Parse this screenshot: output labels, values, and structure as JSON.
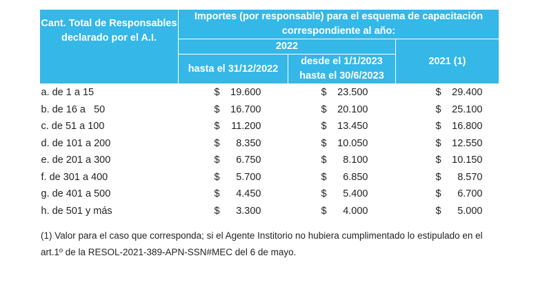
{
  "header": {
    "corner": "Cant. Total de Responsables declarado por el A.I.",
    "group": "Importes (por responsable) para el esquema de capacitación correspondiente al año:",
    "year_2022": "2022",
    "col_until": "hasta el 31/12/2022",
    "col_from": "desde el 1/1/2023 hasta el 30/6/2023",
    "col_2021": "2021 (1)"
  },
  "currency": "$",
  "rows": [
    {
      "range": "a. de 1 a 15",
      "v1": "19.600",
      "v2": "23.500",
      "v3": "29.400"
    },
    {
      "range": "b. de 16 a   50",
      "v1": "16.700",
      "v2": "20.100",
      "v3": "25.100"
    },
    {
      "range": "c. de 51 a 100",
      "v1": "11.200",
      "v2": "13.450",
      "v3": "16.800"
    },
    {
      "range": "d. de 101 a 200",
      "v1": "8.350",
      "v2": "10.050",
      "v3": "12.550"
    },
    {
      "range": "e. de 201 a 300",
      "v1": "6.750",
      "v2": "8.100",
      "v3": "10.150"
    },
    {
      "range": "f. de 301 a 400",
      "v1": "5.700",
      "v2": "6.850",
      "v3": "8.570"
    },
    {
      "range": "g. de 401 a 500",
      "v1": "4.450",
      "v2": "5.400",
      "v3": "6.700"
    },
    {
      "range": "h. de 501 y más",
      "v1": "3.300",
      "v2": "4.000",
      "v3": "5.000"
    }
  ],
  "footnote_line1": "(1) Valor para el caso que corresponda; si el Agente Institorio no hubiera cumplimentado lo estipulado en el",
  "footnote_line2": "art.1º de la RESOL-2021-389-APN-SSN#MEC del 6 de mayo.",
  "colors": {
    "header_bg": "#35b7e8",
    "header_text": "#ffffff",
    "body_text": "#231f20"
  }
}
